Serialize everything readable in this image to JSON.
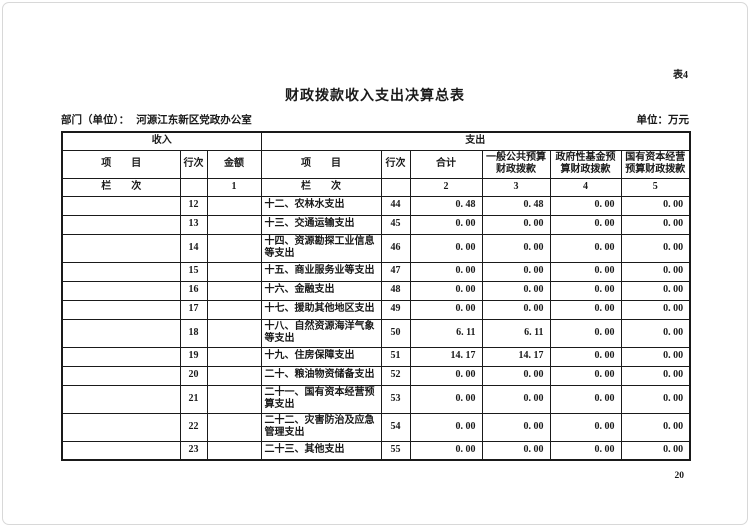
{
  "page": {
    "table_label": "表4",
    "title": "财政拨款收入支出决算总表",
    "department_label": "部门（单位）：",
    "department_value": "河源江东新区党政办公室",
    "unit_note": "单位：万元",
    "page_number": "20"
  },
  "table": {
    "sections": {
      "income": "收入",
      "expense": "支出"
    },
    "columns": {
      "item": "项　　目",
      "line_no": "行次",
      "amount": "金额",
      "total": "合计",
      "general_budget": "一般公共预算财政拨款",
      "gov_fund_budget": "政府性基金预算财政拨款",
      "state_capital_budget": "国有资本经营预算财政拨款"
    },
    "column_index_label": "栏　　次",
    "column_indexes": {
      "amount": "1",
      "total": "2",
      "general": "3",
      "gov_fund": "4",
      "state_capital": "5"
    },
    "rows": [
      {
        "income_item": "",
        "income_line": "12",
        "income_amount": "",
        "expense_item": "十二、农林水支出",
        "expense_line": "44",
        "total": "0. 48",
        "general": "0. 48",
        "gov_fund": "0. 00",
        "state_capital": "0. 00",
        "tall": false
      },
      {
        "income_item": "",
        "income_line": "13",
        "income_amount": "",
        "expense_item": "十三、交通运输支出",
        "expense_line": "45",
        "total": "0. 00",
        "general": "0. 00",
        "gov_fund": "0. 00",
        "state_capital": "0. 00",
        "tall": false
      },
      {
        "income_item": "",
        "income_line": "14",
        "income_amount": "",
        "expense_item": "十四、资源勘探工业信息等支出",
        "expense_line": "46",
        "total": "0. 00",
        "general": "0. 00",
        "gov_fund": "0. 00",
        "state_capital": "0. 00",
        "tall": true
      },
      {
        "income_item": "",
        "income_line": "15",
        "income_amount": "",
        "expense_item": "十五、商业服务业等支出",
        "expense_line": "47",
        "total": "0. 00",
        "general": "0. 00",
        "gov_fund": "0. 00",
        "state_capital": "0. 00",
        "tall": false
      },
      {
        "income_item": "",
        "income_line": "16",
        "income_amount": "",
        "expense_item": "十六、金融支出",
        "expense_line": "48",
        "total": "0. 00",
        "general": "0. 00",
        "gov_fund": "0. 00",
        "state_capital": "0. 00",
        "tall": false
      },
      {
        "income_item": "",
        "income_line": "17",
        "income_amount": "",
        "expense_item": "十七、援助其他地区支出",
        "expense_line": "49",
        "total": "0. 00",
        "general": "0. 00",
        "gov_fund": "0. 00",
        "state_capital": "0. 00",
        "tall": false
      },
      {
        "income_item": "",
        "income_line": "18",
        "income_amount": "",
        "expense_item": "十八、自然资源海洋气象等支出",
        "expense_line": "50",
        "total": "6. 11",
        "general": "6. 11",
        "gov_fund": "0. 00",
        "state_capital": "0. 00",
        "tall": true
      },
      {
        "income_item": "",
        "income_line": "19",
        "income_amount": "",
        "expense_item": "十九、住房保障支出",
        "expense_line": "51",
        "total": "14. 17",
        "general": "14. 17",
        "gov_fund": "0. 00",
        "state_capital": "0. 00",
        "tall": false
      },
      {
        "income_item": "",
        "income_line": "20",
        "income_amount": "",
        "expense_item": "二十、粮油物资储备支出",
        "expense_line": "52",
        "total": "0. 00",
        "general": "0. 00",
        "gov_fund": "0. 00",
        "state_capital": "0. 00",
        "tall": false
      },
      {
        "income_item": "",
        "income_line": "21",
        "income_amount": "",
        "expense_item": "二十一、国有资本经营预算支出",
        "expense_line": "53",
        "total": "0. 00",
        "general": "0. 00",
        "gov_fund": "0. 00",
        "state_capital": "0. 00",
        "tall": true
      },
      {
        "income_item": "",
        "income_line": "22",
        "income_amount": "",
        "expense_item": "二十二、灾害防治及应急管理支出",
        "expense_line": "54",
        "total": "0. 00",
        "general": "0. 00",
        "gov_fund": "0. 00",
        "state_capital": "0. 00",
        "tall": true
      },
      {
        "income_item": "",
        "income_line": "23",
        "income_amount": "",
        "expense_item": "二十三、其他支出",
        "expense_line": "55",
        "total": "0. 00",
        "general": "0. 00",
        "gov_fund": "0. 00",
        "state_capital": "0. 00",
        "tall": false
      }
    ]
  },
  "colors": {
    "grid_border": "#1a1a1a",
    "text": "#1a1a1a",
    "page_frame": "#d8d8d8",
    "background": "#ffffff"
  }
}
